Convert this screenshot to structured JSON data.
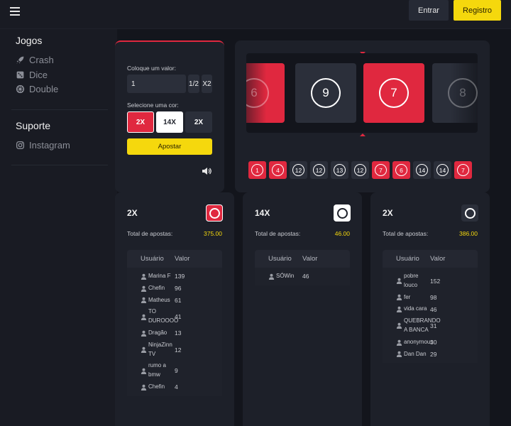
{
  "topbar": {
    "entrar_label": "Entrar",
    "registro_label": "Registro"
  },
  "sidebar": {
    "games_heading": "Jogos",
    "games": [
      {
        "label": "Crash",
        "icon": "rocket-icon"
      },
      {
        "label": "Dice",
        "icon": "dice-icon"
      },
      {
        "label": "Double",
        "icon": "wheel-icon"
      }
    ],
    "support_heading": "Suporte",
    "support": [
      {
        "label": "Instagram",
        "icon": "instagram-icon"
      }
    ]
  },
  "bet_panel": {
    "amount_label": "Coloque um valor:",
    "amount_value": "1",
    "half_label": "1/2",
    "double_label": "X2",
    "color_label": "Selecione uma cor:",
    "colors": [
      {
        "label": "2X",
        "color": "#e0283f"
      },
      {
        "label": "14X",
        "color": "#ffffff"
      },
      {
        "label": "2X",
        "color": "#2b2f3a"
      }
    ],
    "bet_button": "Apostar"
  },
  "roulette": {
    "tiles": [
      {
        "number": "6",
        "color": "#e0283f"
      },
      {
        "number": "9",
        "color": "#2b2f3a"
      },
      {
        "number": "7",
        "color": "#e0283f"
      },
      {
        "number": "8",
        "color": "#2b2f3a"
      }
    ],
    "history": [
      {
        "number": "1",
        "color": "red"
      },
      {
        "number": "4",
        "color": "red"
      },
      {
        "number": "12",
        "color": "dark"
      },
      {
        "number": "12",
        "color": "dark"
      },
      {
        "number": "13",
        "color": "dark"
      },
      {
        "number": "12",
        "color": "dark"
      },
      {
        "number": "7",
        "color": "red"
      },
      {
        "number": "6",
        "color": "red"
      },
      {
        "number": "14",
        "color": "dark"
      },
      {
        "number": "14",
        "color": "dark"
      },
      {
        "number": "7",
        "color": "red"
      }
    ]
  },
  "columns": [
    {
      "title": "2X",
      "badge_color": "red",
      "total_label": "Total de apostas:",
      "total_value": "375.00",
      "header_user": "Usuário",
      "header_value": "Valor",
      "rows": [
        {
          "user": "Marina F",
          "value": "139"
        },
        {
          "user": "Chefin",
          "value": "96"
        },
        {
          "user": "Matheus",
          "value": "61"
        },
        {
          "user": "TO DUROOOO",
          "value": "41"
        },
        {
          "user": "Dragão",
          "value": "13"
        },
        {
          "user": "NinjaZinn TV",
          "value": "12"
        },
        {
          "user": "rumo a bmw",
          "value": "9"
        },
        {
          "user": "Chefin",
          "value": "4"
        }
      ]
    },
    {
      "title": "14X",
      "badge_color": "white",
      "total_label": "Total de apostas:",
      "total_value": "46.00",
      "header_user": "Usuário",
      "header_value": "Valor",
      "rows": [
        {
          "user": "SÓWin",
          "value": "46"
        }
      ]
    },
    {
      "title": "2X",
      "badge_color": "dark",
      "total_label": "Total de apostas:",
      "total_value": "386.00",
      "header_user": "Usuário",
      "header_value": "Valor",
      "rows": [
        {
          "user": "pobre louco",
          "value": "152"
        },
        {
          "user": "fer",
          "value": "98"
        },
        {
          "user": "vida cara",
          "value": "46"
        },
        {
          "user": "QUEBRANDO A BANCA",
          "value": "31"
        },
        {
          "user": "anonymous",
          "value": "30"
        },
        {
          "user": "Dan Dan",
          "value": "29"
        }
      ]
    }
  ]
}
